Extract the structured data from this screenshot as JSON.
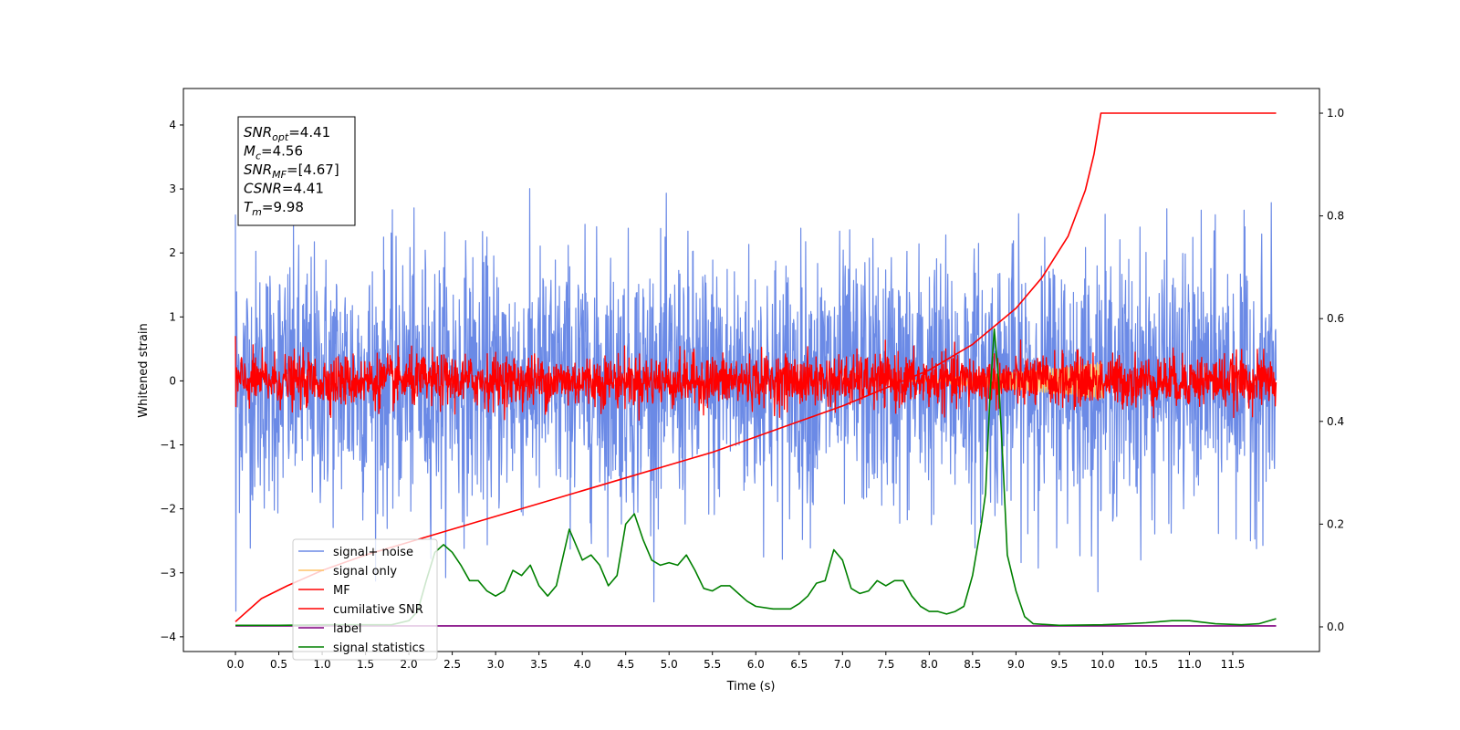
{
  "chart_data": {
    "type": "line",
    "xlabel": "Time (s)",
    "ylabel": "Whitened strain",
    "xlim": [
      -0.6,
      12.5
    ],
    "ylim": [
      -4.23,
      4.57
    ],
    "y2lim": [
      -0.048,
      1.048
    ],
    "x_ticks": [
      0.0,
      0.5,
      1.0,
      1.5,
      2.0,
      2.5,
      3.0,
      3.5,
      4.0,
      4.5,
      5.0,
      5.5,
      6.0,
      6.5,
      7.0,
      7.5,
      8.0,
      8.5,
      9.0,
      9.5,
      10.0,
      10.5,
      11.0,
      11.5
    ],
    "x_tick_labels": [
      "0.0",
      "0.5",
      "1.0",
      "1.5",
      "2.0",
      "2.5",
      "3.0",
      "3.5",
      "4.0",
      "4.5",
      "5.0",
      "5.5",
      "6.0",
      "6.5",
      "7.0",
      "7.5",
      "8.0",
      "8.5",
      "9.0",
      "9.5",
      "10.0",
      "10.5",
      "11.0",
      "11.5"
    ],
    "y_ticks": [
      -4,
      -3,
      -2,
      -1,
      0,
      1,
      2,
      3,
      4
    ],
    "y_tick_labels": [
      "−4",
      "−3",
      "−2",
      "−1",
      "0",
      "1",
      "2",
      "3",
      "4"
    ],
    "y2_ticks": [
      0.0,
      0.2,
      0.4,
      0.6,
      0.8,
      1.0
    ],
    "y2_tick_labels": [
      "0.0",
      "0.2",
      "0.4",
      "0.6",
      "0.8",
      "1.0"
    ],
    "grid": false,
    "legend_position": "lower-left",
    "series": [
      {
        "name": "signal+ noise",
        "color": "#6b8ae6",
        "axis": "left",
        "kind": "noise",
        "x_range": [
          0,
          12
        ],
        "std": 1.0,
        "peak_envelope": [
          2.6,
          -3.6
        ]
      },
      {
        "name": "signal only",
        "color": "#ffc469",
        "axis": "left",
        "kind": "chirp",
        "x_range": [
          7.5,
          10.0
        ],
        "amplitude_max": 0.3
      },
      {
        "name": "MF",
        "color": "#ff0000",
        "axis": "left",
        "kind": "noise",
        "x_range": [
          0,
          12
        ],
        "std": 0.2,
        "peak_envelope": [
          0.7,
          -0.4
        ]
      },
      {
        "name": "cumilative SNR",
        "color": "#ff0000",
        "axis": "right",
        "x": [
          0.0,
          0.3,
          0.6,
          1.0,
          1.5,
          2.0,
          2.5,
          3.0,
          3.5,
          4.0,
          4.5,
          5.0,
          5.5,
          6.0,
          6.5,
          7.0,
          7.5,
          8.0,
          8.5,
          9.0,
          9.3,
          9.6,
          9.8,
          9.9,
          9.98,
          10.5,
          11.0,
          11.5,
          12.0
        ],
        "y": [
          0.01,
          0.055,
          0.08,
          0.11,
          0.14,
          0.165,
          0.19,
          0.215,
          0.24,
          0.265,
          0.29,
          0.315,
          0.34,
          0.37,
          0.4,
          0.43,
          0.465,
          0.5,
          0.55,
          0.62,
          0.68,
          0.76,
          0.85,
          0.92,
          1.0,
          1.0,
          1.0,
          1.0,
          1.0
        ]
      },
      {
        "name": "label",
        "color": "#800080",
        "axis": "right",
        "x": [
          0.0,
          12.0
        ],
        "y": [
          0.002,
          0.002
        ]
      },
      {
        "name": "signal statistics",
        "color": "#008000",
        "axis": "right",
        "x": [
          0.0,
          0.5,
          1.0,
          1.5,
          1.8,
          2.0,
          2.1,
          2.2,
          2.3,
          2.4,
          2.5,
          2.6,
          2.7,
          2.8,
          2.9,
          3.0,
          3.1,
          3.2,
          3.3,
          3.4,
          3.5,
          3.6,
          3.7,
          3.85,
          4.0,
          4.1,
          4.2,
          4.3,
          4.4,
          4.5,
          4.6,
          4.7,
          4.8,
          4.9,
          5.0,
          5.1,
          5.2,
          5.3,
          5.4,
          5.5,
          5.6,
          5.7,
          5.8,
          5.9,
          6.0,
          6.2,
          6.4,
          6.5,
          6.6,
          6.7,
          6.8,
          6.9,
          7.0,
          7.1,
          7.2,
          7.3,
          7.4,
          7.5,
          7.6,
          7.7,
          7.8,
          7.9,
          8.0,
          8.1,
          8.2,
          8.3,
          8.4,
          8.5,
          8.6,
          8.65,
          8.7,
          8.75,
          8.8,
          8.85,
          8.9,
          9.0,
          9.1,
          9.2,
          9.5,
          10.0,
          10.3,
          10.5,
          10.8,
          11.0,
          11.3,
          11.6,
          11.8,
          12.0
        ],
        "y": [
          0.003,
          0.003,
          0.004,
          0.004,
          0.004,
          0.012,
          0.03,
          0.09,
          0.145,
          0.16,
          0.145,
          0.12,
          0.09,
          0.09,
          0.07,
          0.06,
          0.07,
          0.11,
          0.1,
          0.12,
          0.08,
          0.06,
          0.08,
          0.19,
          0.13,
          0.14,
          0.12,
          0.08,
          0.1,
          0.2,
          0.22,
          0.17,
          0.13,
          0.12,
          0.125,
          0.12,
          0.14,
          0.11,
          0.075,
          0.07,
          0.08,
          0.08,
          0.065,
          0.05,
          0.04,
          0.035,
          0.035,
          0.045,
          0.06,
          0.085,
          0.09,
          0.15,
          0.13,
          0.075,
          0.065,
          0.07,
          0.09,
          0.08,
          0.09,
          0.09,
          0.06,
          0.04,
          0.03,
          0.03,
          0.025,
          0.03,
          0.04,
          0.1,
          0.2,
          0.26,
          0.45,
          0.58,
          0.48,
          0.32,
          0.14,
          0.07,
          0.02,
          0.006,
          0.003,
          0.004,
          0.006,
          0.008,
          0.012,
          0.012,
          0.006,
          0.004,
          0.006,
          0.016
        ]
      }
    ],
    "annotation": {
      "lines": [
        {
          "base": "SNR",
          "sub": "opt",
          "value": "=4.41"
        },
        {
          "base": "M",
          "sub": "c",
          "value": "=4.56"
        },
        {
          "base": "SNR",
          "sub": "MF",
          "value": "=[4.67]"
        },
        {
          "base": "CSNR",
          "sub": "",
          "value": "=4.41"
        },
        {
          "base": "T",
          "sub": "m",
          "value": "=9.98"
        }
      ]
    }
  }
}
